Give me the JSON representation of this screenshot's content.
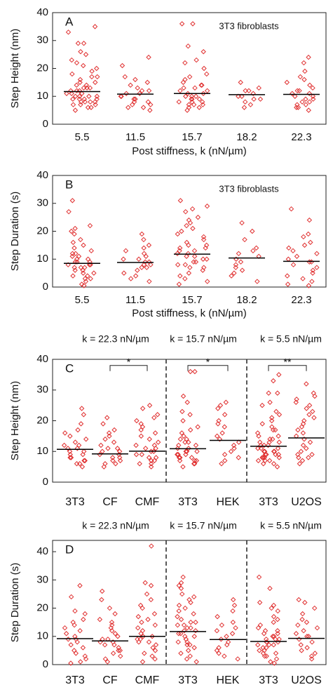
{
  "chart_data": [
    {
      "type": "strip",
      "panel_label": "A",
      "annotation": "3T3 fibroblasts",
      "color": "#e03030",
      "categories": [
        "5.5",
        "11.5",
        "15.7",
        "18.2",
        "22.3"
      ],
      "points": [
        [
          35,
          33,
          29,
          29,
          26,
          25,
          23,
          22,
          21,
          20,
          19,
          18,
          17,
          17,
          16,
          15,
          15,
          14,
          14,
          13,
          13,
          13,
          12,
          12,
          12,
          11,
          11,
          11,
          10,
          10,
          10,
          10,
          9,
          9,
          9,
          9,
          8,
          8,
          8,
          8,
          7,
          7,
          7,
          6,
          6,
          5
        ],
        [
          24,
          21,
          17,
          16,
          15,
          14,
          13,
          12,
          12,
          11,
          11,
          10,
          10,
          9,
          9,
          8,
          8,
          7,
          7,
          6,
          6,
          5
        ],
        [
          36,
          36,
          28,
          26,
          23,
          22,
          20,
          18,
          17,
          16,
          15,
          14,
          14,
          13,
          13,
          12,
          12,
          11,
          11,
          10,
          10,
          10,
          9,
          9,
          9,
          8,
          8,
          8,
          7,
          7,
          7,
          6,
          6,
          5
        ],
        [
          15,
          13,
          12,
          12,
          11,
          10,
          10,
          9,
          9,
          8,
          7,
          6
        ],
        [
          24,
          22,
          19,
          17,
          16,
          15,
          14,
          13,
          12,
          12,
          11,
          11,
          10,
          10,
          9,
          9,
          8,
          8,
          7,
          7,
          6,
          6,
          5
        ]
      ],
      "means": [
        11.7,
        10.8,
        11.0,
        10.6,
        10.7
      ],
      "ylabel": "Step Height (nm)",
      "xlabel": "Post stiffness, k (nN/µm)",
      "ylim": [
        0,
        40
      ],
      "yticks": [
        0,
        10,
        20,
        30,
        40
      ]
    },
    {
      "type": "strip",
      "panel_label": "B",
      "annotation": "3T3 fibroblasts",
      "color": "#e03030",
      "categories": [
        "5.5",
        "11.5",
        "15.7",
        "18.2",
        "22.3"
      ],
      "points": [
        [
          31,
          27,
          22,
          21,
          20,
          19,
          17,
          16,
          15,
          14,
          13,
          12,
          12,
          11,
          11,
          10,
          10,
          9,
          9,
          9,
          8,
          8,
          8,
          7,
          7,
          7,
          6,
          6,
          5,
          5,
          4,
          4,
          3,
          3,
          2,
          1,
          0.5
        ],
        [
          19,
          17,
          15,
          14,
          13,
          12,
          11,
          10,
          10,
          9,
          9,
          8,
          8,
          7,
          7,
          6,
          5,
          4,
          3,
          2
        ],
        [
          31,
          29,
          28,
          27,
          25,
          24,
          23,
          22,
          21,
          20,
          19,
          18,
          17,
          16,
          15,
          15,
          14,
          14,
          13,
          13,
          12,
          12,
          11,
          11,
          10,
          10,
          9,
          9,
          8,
          8,
          7,
          7,
          6,
          5,
          4,
          3,
          2,
          1
        ],
        [
          23,
          20,
          17,
          14,
          13,
          12,
          11,
          10,
          9,
          8,
          7,
          6,
          5,
          4,
          2
        ],
        [
          28,
          24,
          19,
          18,
          16,
          15,
          14,
          13,
          12,
          11,
          10,
          9,
          9,
          8,
          7,
          6,
          5,
          4,
          3,
          2,
          1,
          0.5
        ]
      ],
      "means": [
        8.5,
        8.8,
        11.8,
        10.4,
        9.2
      ],
      "ylabel": "Step Duration (s)",
      "xlabel": "Post stiffness, k (nN/µm)",
      "ylim": [
        0,
        40
      ],
      "yticks": [
        0,
        10,
        20,
        30,
        40
      ]
    },
    {
      "type": "strip",
      "panel_label": "C",
      "color": "#e03030",
      "group_labels": [
        "k = 22.3 nN/µm",
        "k = 15.7 nN/µm",
        "k = 5.5 nN/µm"
      ],
      "categories": [
        "3T3",
        "CF",
        "CMF",
        "3T3",
        "HEK",
        "3T3",
        "U2OS"
      ],
      "points": [
        [
          24,
          22,
          19,
          17,
          16,
          15,
          14,
          13,
          12,
          12,
          11,
          11,
          10,
          10,
          9,
          9,
          8,
          8,
          7,
          7,
          6,
          6,
          5
        ],
        [
          21,
          19,
          17,
          16,
          15,
          14,
          13,
          12,
          11,
          11,
          10,
          10,
          9,
          9,
          8,
          8,
          7,
          7,
          6,
          6,
          5
        ],
        [
          25,
          24,
          22,
          21,
          20,
          19,
          18,
          17,
          16,
          15,
          14,
          13,
          12,
          12,
          11,
          11,
          10,
          10,
          9,
          9,
          8,
          8,
          7,
          7,
          6,
          6,
          5
        ],
        [
          36,
          36,
          28,
          26,
          23,
          22,
          20,
          18,
          17,
          16,
          15,
          14,
          14,
          13,
          13,
          12,
          12,
          11,
          11,
          10,
          10,
          10,
          9,
          9,
          9,
          8,
          8,
          8,
          7,
          7,
          7,
          6,
          6,
          5
        ],
        [
          26,
          25,
          24,
          22,
          20,
          19,
          18,
          16,
          15,
          14,
          13,
          12,
          11,
          10,
          9,
          8,
          7,
          6
        ],
        [
          35,
          33,
          29,
          29,
          26,
          25,
          23,
          22,
          21,
          20,
          19,
          18,
          17,
          17,
          16,
          15,
          15,
          14,
          14,
          13,
          13,
          13,
          12,
          12,
          12,
          11,
          11,
          11,
          10,
          10,
          10,
          10,
          9,
          9,
          9,
          9,
          8,
          8,
          8,
          8,
          7,
          7,
          7,
          6,
          6,
          5
        ],
        [
          32,
          29,
          28,
          27,
          26,
          25,
          24,
          23,
          22,
          21,
          20,
          19,
          18,
          17,
          16,
          15,
          14,
          13,
          12,
          11,
          10,
          9,
          9,
          8,
          8,
          7,
          6
        ]
      ],
      "means": [
        10.7,
        9.2,
        10.1,
        10.9,
        13.6,
        11.7,
        14.4
      ],
      "significance": [
        "*",
        "*",
        "**"
      ],
      "ylabel": "Step Height (nm)",
      "ylim": [
        0,
        40
      ],
      "yticks": [
        0,
        10,
        20,
        30,
        40
      ]
    },
    {
      "type": "strip",
      "panel_label": "D",
      "color": "#e03030",
      "group_labels": [
        "k = 22.3 nN/µm",
        "k = 15.7 nN/µm",
        "k = 5.5 nN/µm"
      ],
      "categories": [
        "3T3",
        "CF",
        "CMF",
        "3T3",
        "HEK",
        "3T3",
        "U2OS"
      ],
      "points": [
        [
          28,
          24,
          19,
          18,
          16,
          15,
          14,
          13,
          12,
          11,
          10,
          9,
          9,
          8,
          7,
          6,
          5,
          4,
          3,
          2,
          1,
          0.5
        ],
        [
          26,
          23,
          20,
          18,
          16,
          15,
          14,
          13,
          12,
          11,
          10,
          9,
          9,
          8,
          8,
          7,
          7,
          6,
          5,
          5,
          4,
          3,
          2,
          1
        ],
        [
          42,
          29,
          28,
          25,
          23,
          21,
          20,
          18,
          17,
          16,
          15,
          14,
          13,
          12,
          11,
          10,
          10,
          9,
          9,
          8,
          8,
          7,
          6,
          5,
          4,
          3,
          2,
          1
        ],
        [
          31,
          29,
          28,
          27,
          25,
          24,
          23,
          22,
          21,
          20,
          19,
          18,
          17,
          16,
          15,
          15,
          14,
          14,
          13,
          13,
          12,
          12,
          11,
          11,
          10,
          10,
          9,
          9,
          8,
          8,
          7,
          7,
          6,
          5,
          4,
          3,
          2,
          1
        ],
        [
          23,
          21,
          19,
          17,
          15,
          14,
          13,
          12,
          11,
          10,
          9,
          8,
          7,
          6,
          5,
          4,
          3,
          2
        ],
        [
          31,
          27,
          22,
          21,
          20,
          19,
          17,
          16,
          15,
          14,
          13,
          12,
          12,
          11,
          11,
          10,
          10,
          9,
          9,
          9,
          8,
          8,
          8,
          7,
          7,
          7,
          6,
          6,
          5,
          5,
          4,
          4,
          3,
          3,
          2,
          1,
          0.5
        ],
        [
          23,
          22,
          20,
          18,
          16,
          15,
          14,
          13,
          12,
          11,
          10,
          10,
          9,
          8,
          7,
          6,
          5,
          4,
          3,
          2
        ]
      ],
      "means": [
        9.2,
        8.4,
        10.0,
        11.7,
        8.9,
        8.2,
        9.3
      ],
      "ylabel": "Step Duration (s)",
      "ylim": [
        0,
        44
      ],
      "yticks": [
        0,
        10,
        20,
        30,
        40
      ]
    }
  ]
}
